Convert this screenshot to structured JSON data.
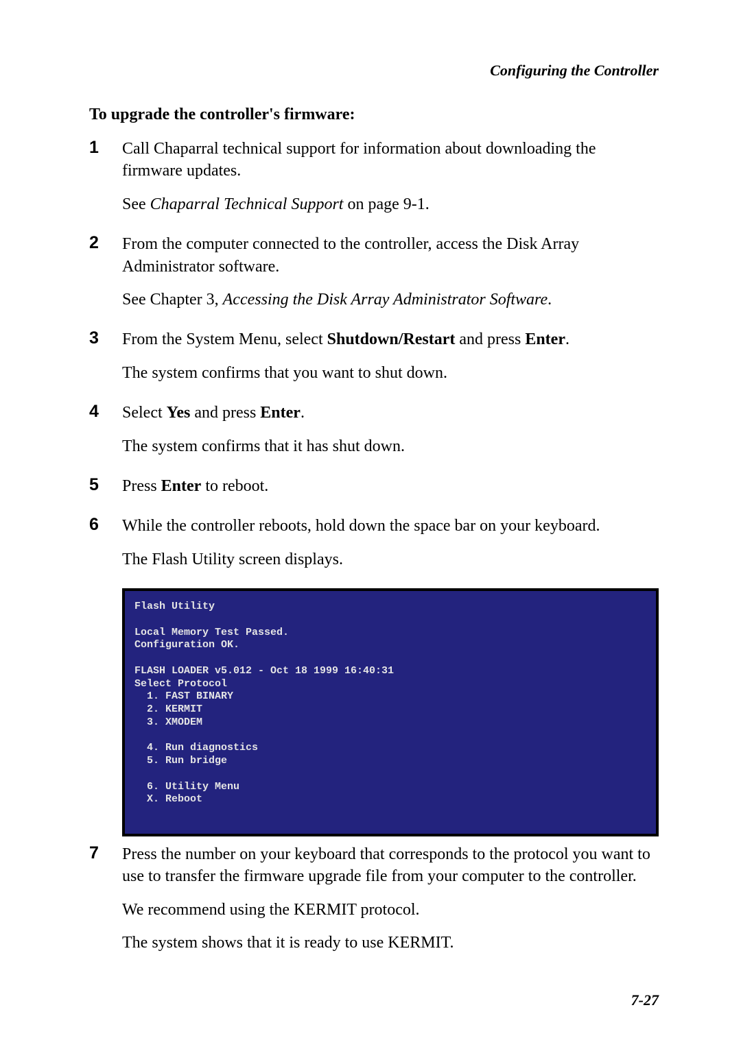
{
  "header": "Configuring the Controller",
  "section_heading": "To upgrade the controller's firmware:",
  "steps": [
    {
      "num": "1",
      "paras": [
        [
          {
            "t": "Call Chaparral technical support for information about downloading the firmware updates."
          }
        ],
        [
          {
            "t": "See "
          },
          {
            "t": "Chaparral Technical Support",
            "cls": "i"
          },
          {
            "t": " on page 9-1."
          }
        ]
      ]
    },
    {
      "num": "2",
      "paras": [
        [
          {
            "t": "From the computer connected to the controller, access the Disk Array Administrator software."
          }
        ],
        [
          {
            "t": "See Chapter 3, "
          },
          {
            "t": "Accessing the Disk Array Administrator Software",
            "cls": "i"
          },
          {
            "t": "."
          }
        ]
      ]
    },
    {
      "num": "3",
      "paras": [
        [
          {
            "t": "From the System Menu, select "
          },
          {
            "t": "Shutdown/Restart",
            "cls": "b"
          },
          {
            "t": " and press "
          },
          {
            "t": "Enter",
            "cls": "b"
          },
          {
            "t": "."
          }
        ],
        [
          {
            "t": "The system confirms that you want to shut down."
          }
        ]
      ]
    },
    {
      "num": "4",
      "paras": [
        [
          {
            "t": "Select "
          },
          {
            "t": "Yes",
            "cls": "b"
          },
          {
            "t": " and press "
          },
          {
            "t": "Enter",
            "cls": "b"
          },
          {
            "t": "."
          }
        ],
        [
          {
            "t": "The system confirms that it has shut down."
          }
        ]
      ]
    },
    {
      "num": "5",
      "paras": [
        [
          {
            "t": "Press "
          },
          {
            "t": "Enter",
            "cls": "b"
          },
          {
            "t": " to reboot."
          }
        ]
      ]
    },
    {
      "num": "6",
      "paras": [
        [
          {
            "t": "While the controller reboots, hold down the space bar on your keyboard."
          }
        ],
        [
          {
            "t": "The Flash Utility screen displays."
          }
        ]
      ]
    }
  ],
  "terminal": {
    "bg": "#23237e",
    "fg": "#e5e5e5",
    "border": "#000000",
    "lines": "Flash Utility\n\nLocal Memory Test Passed.\nConfiguration OK.\n\nFLASH LOADER v5.012 - Oct 18 1999 16:40:31\nSelect Protocol\n  1. FAST BINARY\n  2. KERMIT\n  3. XMODEM\n\n  4. Run diagnostics\n  5. Run bridge\n\n  6. Utility Menu\n  X. Reboot"
  },
  "steps_after": [
    {
      "num": "7",
      "paras": [
        [
          {
            "t": "Press the number on your keyboard that corresponds to the protocol you want to use to transfer the firmware upgrade file from your computer to the controller."
          }
        ],
        [
          {
            "t": "We recommend using the KERMIT protocol."
          }
        ],
        [
          {
            "t": "The system shows that it is ready to use KERMIT."
          }
        ]
      ]
    }
  ],
  "page_num": "7-27"
}
